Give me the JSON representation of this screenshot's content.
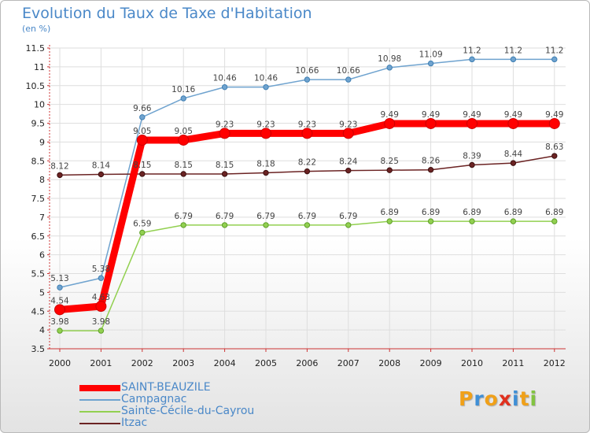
{
  "title": "Evolution du Taux de Taxe d'Habitation",
  "subtitle": "(en %)",
  "brand": {
    "name": "Proxiti",
    "letter_colors": [
      "#f0a018",
      "#3f8fd6",
      "#f0a018",
      "#e0301e",
      "#3f8fd6",
      "#f0a018",
      "#82c341"
    ]
  },
  "chart_data": {
    "type": "line",
    "title": "Evolution du Taux de Taxe d'Habitation",
    "ylabel": "(en %)",
    "xlabel": "",
    "ylim": [
      3.5,
      11.5
    ],
    "yticks": [
      3.5,
      4,
      4.5,
      5,
      5.5,
      6,
      6.5,
      7,
      7.5,
      8,
      8.5,
      9,
      9.5,
      10,
      10.5,
      11,
      11.5
    ],
    "grid": true,
    "legend": "bottom-left",
    "categories": [
      "2000",
      "2001",
      "2002",
      "2003",
      "2004",
      "2005",
      "2006",
      "2007",
      "2008",
      "2009",
      "2010",
      "2011",
      "2012"
    ],
    "series": [
      {
        "name": "Campagnac",
        "color": "#6fa3cf",
        "values": [
          5.13,
          5.38,
          9.66,
          10.16,
          10.46,
          10.46,
          10.66,
          10.66,
          10.98,
          11.09,
          11.2,
          11.2,
          11.2
        ],
        "labels": [
          "5.13",
          "5.38",
          "9.66",
          "10.16",
          "10.46",
          "10.46",
          "10.66",
          "10.66",
          "10.98",
          "11.09",
          "11.2",
          "11.2",
          "11.2"
        ]
      },
      {
        "name": "Itzac",
        "color": "#6b2323",
        "values": [
          8.12,
          8.14,
          8.15,
          8.15,
          8.15,
          8.18,
          8.22,
          8.24,
          8.25,
          8.26,
          8.39,
          8.44,
          8.63
        ],
        "labels": [
          "8.12",
          "8.14",
          "8.15",
          "8.15",
          "8.15",
          "8.18",
          "8.22",
          "8.24",
          "8.25",
          "8.26",
          "8.39",
          "8.44",
          "8.63"
        ]
      },
      {
        "name": "Sainte-Cécile-du-Cayrou",
        "color": "#92d050",
        "values": [
          3.98,
          3.98,
          6.59,
          6.79,
          6.79,
          6.79,
          6.79,
          6.79,
          6.89,
          6.89,
          6.89,
          6.89,
          6.89
        ],
        "labels": [
          "3.98",
          "3.98",
          "6.59",
          "6.79",
          "6.79",
          "6.79",
          "6.79",
          "6.79",
          "6.89",
          "6.89",
          "6.89",
          "6.89",
          "6.89"
        ]
      },
      {
        "name": "SAINT-BEAUZILE",
        "color": "#ff0000",
        "values": [
          4.54,
          4.63,
          9.05,
          9.05,
          9.23,
          9.23,
          9.23,
          9.23,
          9.49,
          9.49,
          9.49,
          9.49,
          9.49
        ],
        "labels": [
          "4.54",
          "4.63",
          "9.05",
          "9.05",
          "9.23",
          "9.23",
          "9.23",
          "9.23",
          "9.49",
          "9.49",
          "9.49",
          "9.49",
          "9.49"
        ]
      }
    ]
  },
  "legend": [
    {
      "label": "SAINT-BEAUZILE",
      "color": "#ff0000"
    },
    {
      "label": "Campagnac",
      "color": "#6fa3cf"
    },
    {
      "label": "Sainte-Cécile-du-Cayrou",
      "color": "#92d050"
    },
    {
      "label": "Itzac",
      "color": "#6b2323"
    }
  ]
}
